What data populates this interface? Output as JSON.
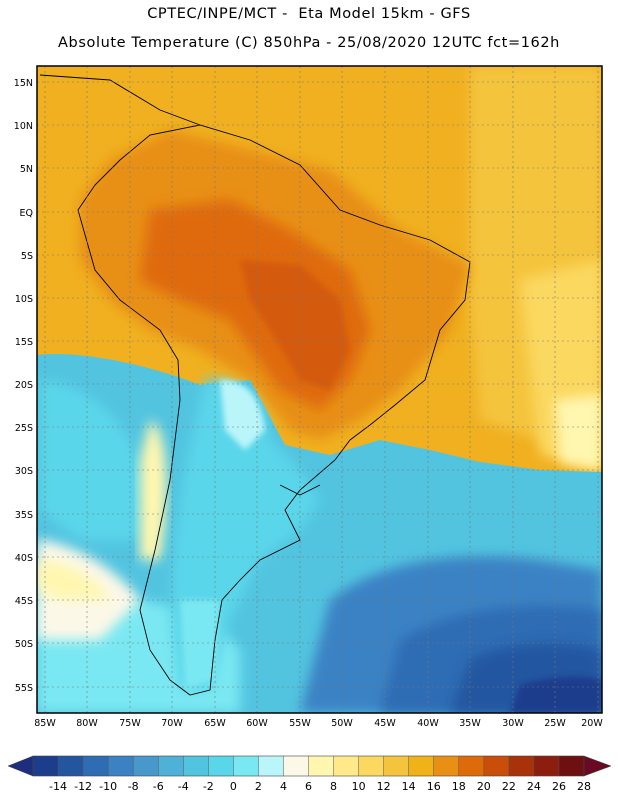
{
  "header": {
    "line1": "CPTEC/INPE/MCT -  Eta Model 15km - GFS",
    "line2": "Absolute Temperature (C) 850hPa - 25/08/2020 12UTC fct=162h"
  },
  "map": {
    "lat_labels": [
      "15N",
      "10N",
      "5N",
      "EQ",
      "5S",
      "10S",
      "15S",
      "20S",
      "25S",
      "30S",
      "35S",
      "40S",
      "45S",
      "50S",
      "55S"
    ],
    "lon_labels": [
      "85W",
      "80W",
      "75W",
      "70W",
      "65W",
      "60W",
      "55W",
      "50W",
      "45W",
      "40W",
      "35W",
      "30W",
      "25W",
      "20W"
    ]
  },
  "colorbar": {
    "tick_labels": [
      "-14",
      "-12",
      "-10",
      "-8",
      "-6",
      "-4",
      "-2",
      "0",
      "2",
      "4",
      "6",
      "8",
      "10",
      "12",
      "14",
      "16",
      "18",
      "20",
      "22",
      "24",
      "26",
      "28"
    ],
    "colors": [
      "#1c3c8c",
      "#2456a0",
      "#2e6cb4",
      "#3a82c4",
      "#4898cc",
      "#4fb0d8",
      "#52c4e0",
      "#5ad6ea",
      "#7ae8f2",
      "#baf5fa",
      "#fcf8e8",
      "#fff7b0",
      "#ffe98a",
      "#fbd860",
      "#f5c43e",
      "#efb218",
      "#e88f16",
      "#df6a0a",
      "#c84e0a",
      "#a8320a",
      "#8c1e10",
      "#6e0f12"
    ],
    "low_arrow_color": "#1e2e7c",
    "high_arrow_color": "#6a0a22"
  }
}
